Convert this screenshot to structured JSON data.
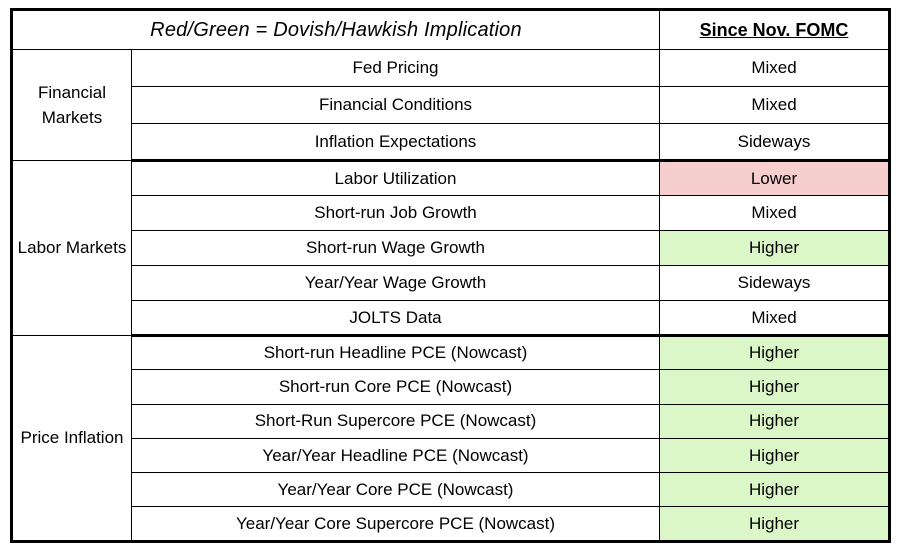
{
  "header": {
    "legend": "Red/Green = Dovish/Hawkish Implication",
    "value_column": "Since Nov. FOMC"
  },
  "colors": {
    "green": "#dbf7c8",
    "red": "#f6cece",
    "none": "#ffffff",
    "border": "#000000",
    "text": "#000000"
  },
  "chart_data": {
    "type": "table",
    "title": "Red/Green = Dovish/Hawkish Implication",
    "columns": [
      "Group",
      "Indicator",
      "Since Nov. FOMC"
    ],
    "sections": [
      {
        "group": "Financial Markets",
        "rows": [
          {
            "indicator": "Fed Pricing",
            "value": "Mixed",
            "highlight": "none"
          },
          {
            "indicator": "Financial Conditions",
            "value": "Mixed",
            "highlight": "none"
          },
          {
            "indicator": "Inflation Expectations",
            "value": "Sideways",
            "highlight": "none"
          }
        ]
      },
      {
        "group": "Labor Markets",
        "rows": [
          {
            "indicator": "Labor Utilization",
            "value": "Lower",
            "highlight": "red"
          },
          {
            "indicator": "Short-run Job Growth",
            "value": "Mixed",
            "highlight": "none"
          },
          {
            "indicator": "Short-run Wage Growth",
            "value": "Higher",
            "highlight": "green"
          },
          {
            "indicator": "Year/Year Wage Growth",
            "value": "Sideways",
            "highlight": "none"
          },
          {
            "indicator": "JOLTS Data",
            "value": "Mixed",
            "highlight": "none"
          }
        ]
      },
      {
        "group": "Price Inflation",
        "rows": [
          {
            "indicator": "Short-run Headline PCE (Nowcast)",
            "value": "Higher",
            "highlight": "green"
          },
          {
            "indicator": "Short-run Core PCE (Nowcast)",
            "value": "Higher",
            "highlight": "green"
          },
          {
            "indicator": "Short-Run Supercore PCE (Nowcast)",
            "value": "Higher",
            "highlight": "green"
          },
          {
            "indicator": "Year/Year Headline PCE (Nowcast)",
            "value": "Higher",
            "highlight": "green"
          },
          {
            "indicator": "Year/Year Core PCE (Nowcast)",
            "value": "Higher",
            "highlight": "green"
          },
          {
            "indicator": "Year/Year Core Supercore PCE (Nowcast)",
            "value": "Higher",
            "highlight": "green"
          }
        ]
      }
    ]
  }
}
